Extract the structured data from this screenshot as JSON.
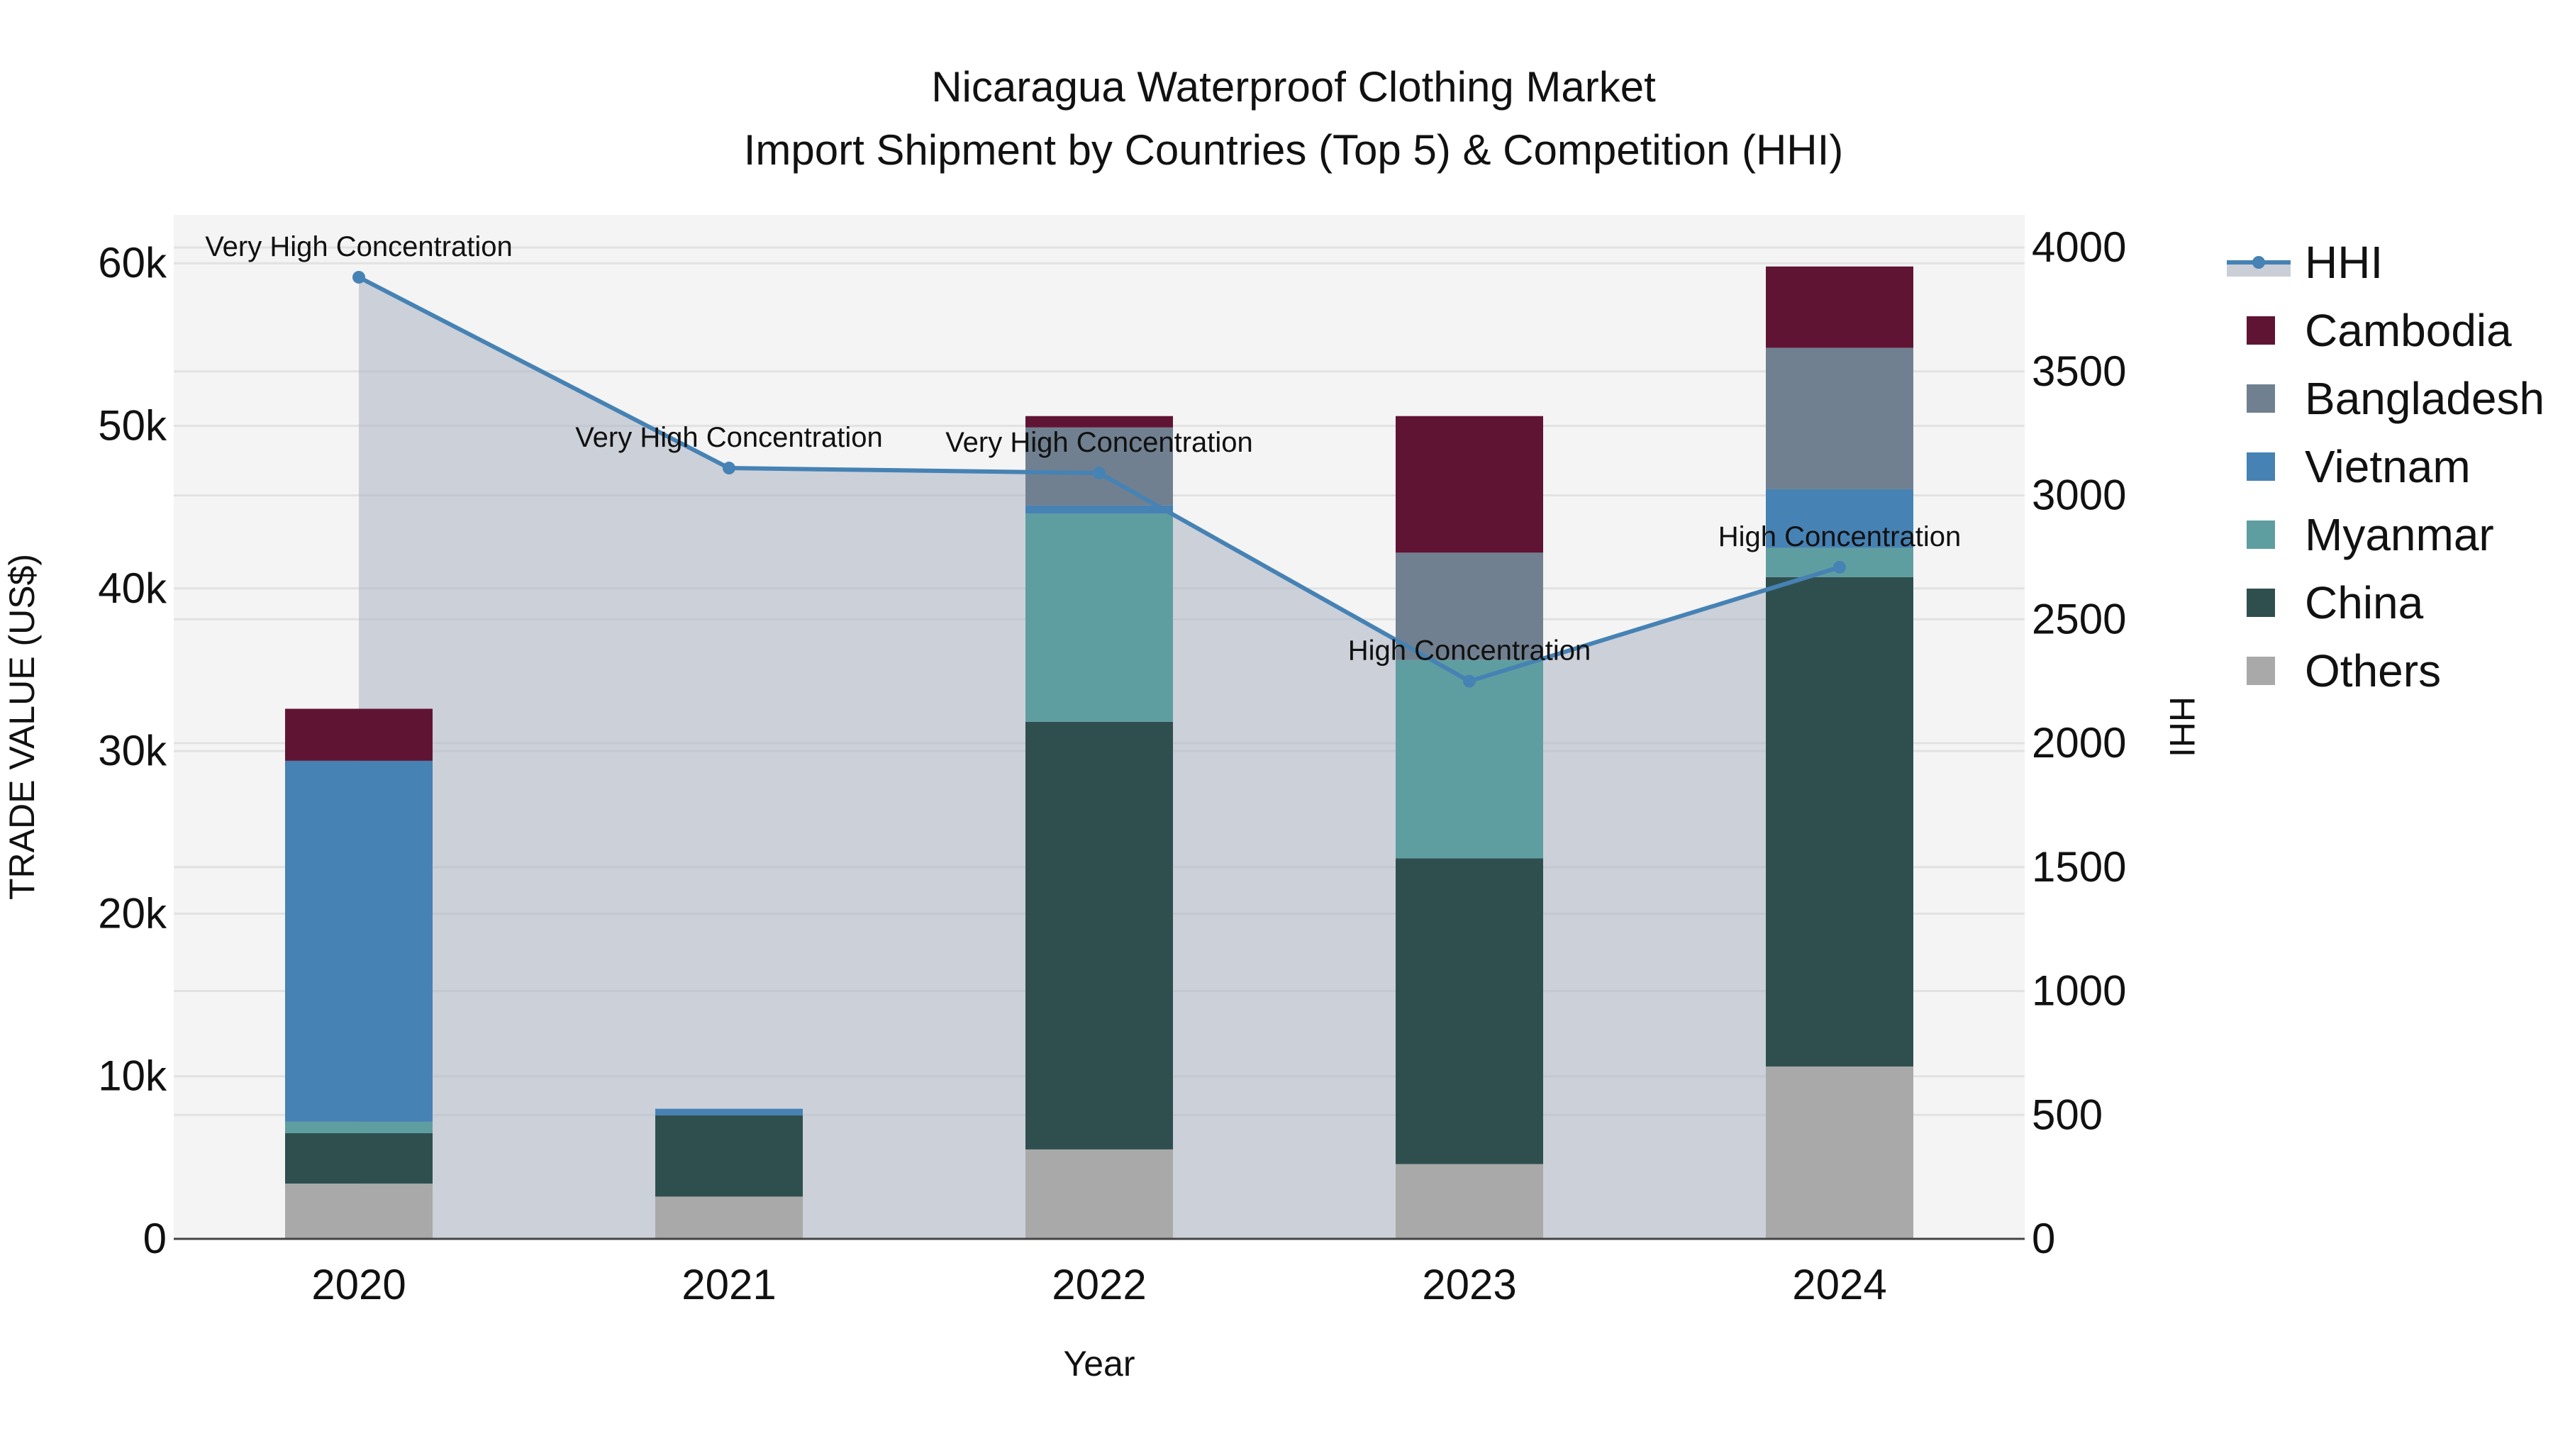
{
  "title": {
    "line1": "Nicaragua Waterproof Clothing Market",
    "line2": "Import Shipment by Countries (Top 5) & Competition (HHI)"
  },
  "axes": {
    "xlabel": "Year",
    "ylabel_left": "TRADE VALUE (US$)",
    "ylabel_right": "HHI",
    "left_ticks": [
      "0",
      "10k",
      "20k",
      "30k",
      "40k",
      "50k",
      "60k"
    ],
    "right_ticks": [
      "0",
      "500",
      "1000",
      "1500",
      "2000",
      "2500",
      "3000",
      "3500",
      "4000"
    ]
  },
  "legend": {
    "items": [
      {
        "label": "HHI",
        "color": "#4682b4",
        "type": "line"
      },
      {
        "label": "Cambodia",
        "color": "#601434",
        "type": "bar"
      },
      {
        "label": "Bangladesh",
        "color": "#708090",
        "type": "bar"
      },
      {
        "label": "Vietnam",
        "color": "#4682b4",
        "type": "bar"
      },
      {
        "label": "Myanmar",
        "color": "#5f9ea0",
        "type": "bar"
      },
      {
        "label": "China",
        "color": "#2f4f4f",
        "type": "bar"
      },
      {
        "label": "Others",
        "color": "#a9a9a9",
        "type": "bar"
      }
    ]
  },
  "chart_data": {
    "type": "bar",
    "stacked": true,
    "title": "Nicaragua Waterproof Clothing Market — Import Shipment by Countries (Top 5) & Competition (HHI)",
    "xlabel": "Year",
    "ylabel": "TRADE VALUE (US$)",
    "y2label": "HHI",
    "ylim": [
      0,
      63000
    ],
    "y2lim": [
      0,
      4200
    ],
    "categories": [
      "2020",
      "2021",
      "2022",
      "2023",
      "2024"
    ],
    "series": [
      {
        "name": "Others",
        "color": "#a9a9a9",
        "values": [
          3400,
          2600,
          5500,
          4600,
          10600
        ]
      },
      {
        "name": "China",
        "color": "#2f4f4f",
        "values": [
          3100,
          5000,
          26300,
          18800,
          30100
        ]
      },
      {
        "name": "Myanmar",
        "color": "#5f9ea0",
        "values": [
          700,
          0,
          12800,
          12200,
          1800
        ]
      },
      {
        "name": "Vietnam",
        "color": "#4682b4",
        "values": [
          22200,
          400,
          500,
          0,
          3600
        ]
      },
      {
        "name": "Bangladesh",
        "color": "#708090",
        "values": [
          0,
          0,
          4800,
          6600,
          8700
        ]
      },
      {
        "name": "Cambodia",
        "color": "#601434",
        "values": [
          3200,
          0,
          700,
          8400,
          5000
        ]
      }
    ],
    "line_series": {
      "name": "HHI",
      "axis": "right",
      "color": "#4682b4",
      "values": [
        3880,
        3110,
        3090,
        2250,
        2710
      ],
      "annotations": [
        "Very High Concentration",
        "Very High Concentration",
        "Very High Concentration",
        "High Concentration",
        "High Concentration"
      ]
    },
    "legend_position": "right",
    "grid": true
  }
}
